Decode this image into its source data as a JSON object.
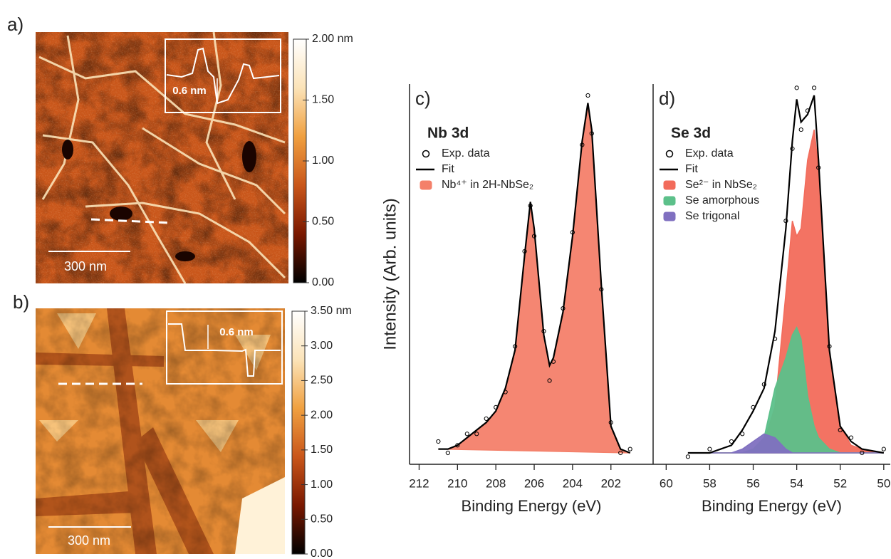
{
  "chart_data": [
    {
      "type": "image",
      "panel_label": "a)",
      "clim": [
        0,
        2
      ],
      "cticks": [
        {
          "value": 0,
          "label": "0.00"
        },
        {
          "value": 0.5,
          "label": "0.50"
        },
        {
          "value": 1,
          "label": "1.00"
        },
        {
          "value": 1.5,
          "label": "1.50"
        },
        {
          "value": 2,
          "label": "2.00 nm"
        }
      ],
      "colormap": [
        "#000000",
        "#7a1800",
        "#c9561a",
        "#f0a040",
        "#fbe3b8",
        "#ffffff"
      ],
      "scale_bar": "300 nm",
      "inset_annotation": "0.6 nm"
    },
    {
      "type": "image",
      "panel_label": "b)",
      "clim": [
        0,
        3.5
      ],
      "cticks": [
        {
          "value": 0,
          "label": "0.00"
        },
        {
          "value": 0.5,
          "label": "0.50"
        },
        {
          "value": 1,
          "label": "1.00"
        },
        {
          "value": 1.5,
          "label": "1.50"
        },
        {
          "value": 2,
          "label": "2.00"
        },
        {
          "value": 2.5,
          "label": "2.50"
        },
        {
          "value": 3,
          "label": "3.00"
        },
        {
          "value": 3.5,
          "label": "3.50 nm"
        }
      ],
      "colormap": [
        "#000000",
        "#7a1800",
        "#c9561a",
        "#f0a040",
        "#fbe3b8",
        "#ffffff"
      ],
      "scale_bar": "300 nm",
      "inset_annotation": "0.6 nm"
    },
    {
      "type": "spectrum",
      "panel_label": "c)",
      "title": "Nb 3d",
      "xlabel": "Binding Energy (eV)",
      "ylabel": "Intensity (Arb. units)",
      "xlim": [
        212.5,
        199.8
      ],
      "ylim": [
        0,
        100
      ],
      "xticks": [
        212,
        210,
        208,
        206,
        204,
        202
      ],
      "legend": "upper left",
      "x": [
        211,
        210.5,
        210,
        209.5,
        209,
        208.5,
        208,
        207.5,
        207,
        206.5,
        206.2,
        206,
        205.5,
        205.2,
        205,
        204.5,
        204,
        203.5,
        203.2,
        203,
        202.5,
        202,
        201.5,
        201
      ],
      "series": [
        {
          "name": "Exp. data",
          "mark": "points",
          "color": "#000000",
          "values": [
            6,
            3,
            5,
            8,
            8,
            12,
            15,
            19,
            31,
            56,
            68,
            60,
            35,
            22,
            27,
            41,
            61,
            84,
            97,
            87,
            46,
            11,
            3,
            4
          ]
        },
        {
          "name": "Fit",
          "mark": "line",
          "color": "#000000",
          "values": [
            4,
            4,
            5,
            7,
            9,
            11,
            14,
            20,
            30,
            55,
            69,
            62,
            34,
            26,
            28,
            40,
            60,
            85,
            95,
            88,
            47,
            10,
            4,
            3
          ]
        },
        {
          "name": "Nb⁴⁺ in 2H-NbSe₂",
          "mark": "area",
          "color": "#f4806a",
          "values": [
            4,
            4,
            5,
            7,
            9,
            11,
            14,
            20,
            30,
            55,
            69,
            62,
            34,
            26,
            28,
            40,
            60,
            85,
            95,
            88,
            47,
            10,
            4,
            3
          ]
        }
      ]
    },
    {
      "type": "spectrum",
      "panel_label": "d)",
      "title": "Se 3d",
      "xlabel": "Binding Energy (eV)",
      "xlim": [
        60.6,
        49.7
      ],
      "ylim": [
        0,
        100
      ],
      "xticks": [
        60,
        58,
        56,
        54,
        52,
        50
      ],
      "legend": "upper left",
      "x": [
        59,
        58,
        57,
        56.5,
        56,
        55.5,
        55,
        54.5,
        54.2,
        54,
        53.8,
        53.5,
        53.2,
        53,
        52.5,
        52,
        51.5,
        51,
        50
      ],
      "series": [
        {
          "name": "Exp. data",
          "mark": "points",
          "color": "#000000",
          "values": [
            2,
            4,
            6,
            8,
            15,
            21,
            33,
            64,
            83,
            99,
            88,
            93,
            99,
            78,
            31,
            9,
            7,
            3,
            4
          ]
        },
        {
          "name": "Fit",
          "mark": "line",
          "color": "#000000",
          "values": [
            3,
            3,
            5,
            9,
            14,
            20,
            35,
            62,
            85,
            96,
            90,
            92,
            97,
            80,
            30,
            10,
            6,
            4,
            3
          ]
        },
        {
          "name": "Se²⁻ in NbSe₂",
          "mark": "area",
          "color": "#f26b5b",
          "values": [
            3,
            3,
            3,
            3,
            4,
            6,
            15,
            45,
            64,
            60,
            62,
            80,
            88,
            78,
            30,
            10,
            5,
            4,
            3
          ]
        },
        {
          "name": "Se amorphous",
          "mark": "area",
          "color": "#5cc08a",
          "values": [
            3,
            3,
            3,
            3,
            4,
            7,
            20,
            28,
            34,
            36,
            33,
            18,
            10,
            7,
            4,
            3,
            3,
            3,
            3
          ]
        },
        {
          "name": "Se trigonal",
          "mark": "area",
          "color": "#8070c0",
          "values": [
            3,
            3,
            3,
            4,
            6,
            8,
            7,
            4,
            3,
            3,
            3,
            3,
            3,
            3,
            3,
            3,
            3,
            3,
            3
          ]
        }
      ]
    }
  ]
}
